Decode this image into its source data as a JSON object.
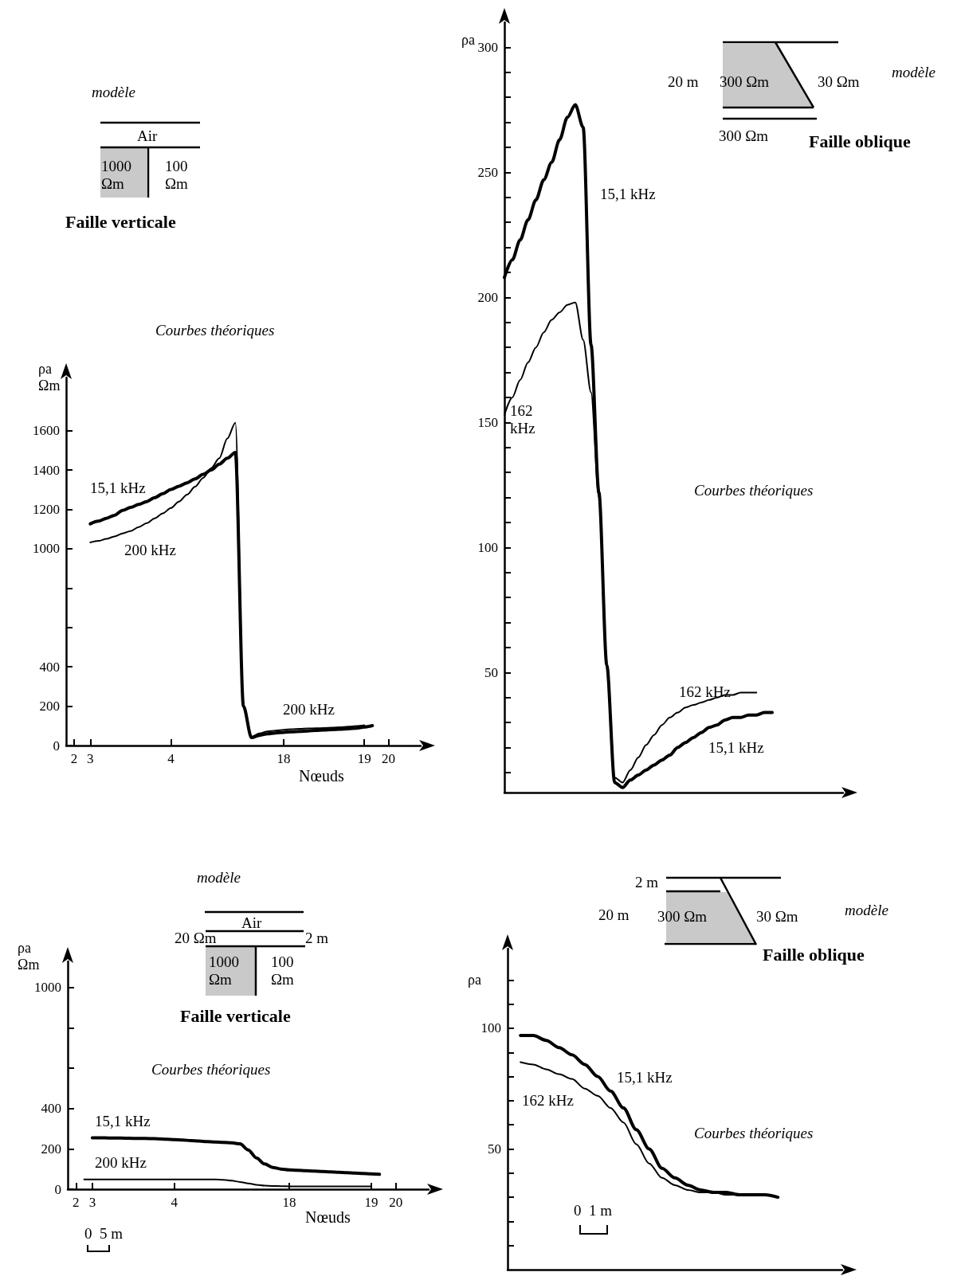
{
  "chart_data": [
    {
      "type": "line",
      "xlabel": "Nœuds",
      "ylabel": "ρa\nΩm",
      "ylim": [
        0,
        1870
      ],
      "categories": [
        null,
        "2",
        null,
        "3",
        null,
        null,
        null,
        null,
        null,
        null,
        null,
        null,
        null,
        "4",
        null,
        null,
        null,
        null,
        null,
        null,
        null,
        null,
        null,
        null,
        null,
        null,
        null,
        "18",
        null,
        null,
        null,
        null,
        null,
        null,
        null,
        null,
        null,
        "19",
        null,
        null,
        "20",
        null,
        null,
        null,
        null
      ],
      "yticks": [
        0,
        200,
        400,
        {
          "value": 600,
          "label": null
        },
        {
          "value": 800,
          "label": null
        },
        1000,
        1200,
        1400,
        1600
      ],
      "series": [
        {
          "name": "15,1 kHz",
          "color": "#000000",
          "values": [
            null,
            null,
            null,
            1127,
            1140,
            1155,
            1170,
            1195,
            1210,
            1225,
            1240,
            1260,
            1280,
            1301,
            1318,
            1335,
            1355,
            1378,
            1400,
            1430,
            1460,
            1490,
            200,
            40,
            52,
            60,
            64,
            67,
            70,
            72,
            74,
            77,
            79,
            81,
            83,
            85,
            88,
            94,
            101,
            null,
            null,
            null,
            null,
            null,
            null
          ]
        },
        {
          "name": "200 kHz",
          "color": "#000000",
          "values": [
            null,
            null,
            null,
            1032,
            1040,
            1050,
            1063,
            1078,
            1090,
            1110,
            1130,
            1155,
            1180,
            1207,
            1240,
            1275,
            1315,
            1360,
            1410,
            1460,
            1560,
            1640,
            200,
            45,
            62,
            72,
            76,
            80,
            83,
            85,
            87,
            88,
            89,
            91,
            93,
            96,
            99,
            103,
            null,
            null,
            null,
            null,
            null,
            null,
            null
          ]
        }
      ],
      "annotations": [
        "modèle",
        "Air",
        "1000\nΩm",
        "100\nΩm",
        "Faille verticale",
        "Courbes théoriques",
        "200 kHz"
      ]
    },
    {
      "type": "line",
      "ylabel": "ρa",
      "tick_labels": "y",
      "ylim": [
        2,
        310
      ],
      "categories": [
        null,
        null,
        null,
        null,
        null,
        null,
        null,
        null,
        null,
        null,
        null,
        null,
        null,
        null,
        null,
        null,
        null,
        null,
        null,
        null,
        null,
        null,
        null,
        null,
        null,
        null,
        null,
        null,
        null,
        null,
        null,
        null,
        null,
        null,
        null,
        null,
        null,
        null,
        null,
        null,
        null,
        null,
        null,
        null
      ],
      "yticks": [
        {
          "value": 10,
          "label": null
        },
        {
          "value": 20,
          "label": null
        },
        {
          "value": 30,
          "label": null
        },
        {
          "value": 40,
          "label": null
        },
        50,
        {
          "value": 60,
          "label": null
        },
        {
          "value": 70,
          "label": null
        },
        {
          "value": 80,
          "label": null
        },
        {
          "value": 90,
          "label": null
        },
        100,
        {
          "value": 110,
          "label": null
        },
        {
          "value": 120,
          "label": null
        },
        {
          "value": 130,
          "label": null
        },
        {
          "value": 140,
          "label": null
        },
        150,
        {
          "value": 160,
          "label": null
        },
        {
          "value": 170,
          "label": null
        },
        {
          "value": 180,
          "label": null
        },
        {
          "value": 190,
          "label": null
        },
        200,
        {
          "value": 210,
          "label": null
        },
        {
          "value": 220,
          "label": null
        },
        {
          "value": 230,
          "label": null
        },
        {
          "value": 240,
          "label": null
        },
        250,
        {
          "value": 260,
          "label": null
        },
        {
          "value": 270,
          "label": null
        },
        {
          "value": 280,
          "label": null
        },
        {
          "value": 290,
          "label": null
        },
        300
      ],
      "series": [
        {
          "name": "15,1 kHz",
          "color": "#000000",
          "values": [
            208,
            215,
            223,
            231,
            239,
            247,
            254,
            263,
            272,
            277,
            268,
            181,
            122,
            53,
            6,
            4,
            7,
            9,
            11,
            13,
            15,
            17,
            20,
            22,
            24,
            26,
            28,
            29,
            31,
            32,
            32,
            33,
            33,
            34,
            34,
            null,
            null,
            null,
            null,
            null,
            null,
            null,
            null,
            null
          ]
        },
        {
          "name": "162 kHz",
          "color": "#000000",
          "values": [
            153,
            160,
            167,
            174,
            180,
            186,
            191,
            194,
            197,
            198,
            183,
            162,
            120,
            53,
            8,
            6,
            11,
            16,
            21,
            25,
            29,
            32,
            34,
            36,
            37,
            38,
            39,
            40,
            41,
            41,
            42,
            42,
            42,
            null,
            null,
            null,
            null,
            null,
            null,
            null,
            null,
            null,
            null,
            null
          ]
        }
      ],
      "annotations": [
        "20 m",
        "300 Ωm",
        "30 Ωm",
        "modèle",
        "300 Ωm",
        "Faille oblique",
        "Courbes théoriques",
        "162 kHz",
        "15,1 kHz"
      ]
    },
    {
      "type": "line",
      "xlabel": "Nœuds",
      "ylabel": "ρa\nΩm",
      "ylim": [
        0,
        1130
      ],
      "categories": [
        null,
        "2",
        null,
        "3",
        null,
        null,
        null,
        null,
        null,
        null,
        null,
        null,
        null,
        "4",
        null,
        null,
        null,
        null,
        null,
        null,
        null,
        null,
        null,
        null,
        null,
        null,
        null,
        "18",
        null,
        null,
        null,
        null,
        null,
        null,
        null,
        null,
        null,
        "19",
        null,
        null,
        "20",
        null,
        null,
        null,
        null
      ],
      "yticks": [
        0,
        200,
        400,
        {
          "value": 600,
          "label": null
        },
        {
          "value": 800,
          "label": null
        },
        1000
      ],
      "series": [
        {
          "name": "15,1 kHz",
          "color": "#000000",
          "values": [
            null,
            null,
            null,
            255,
            255,
            254,
            254,
            253,
            252,
            252,
            251,
            250,
            248,
            246,
            244,
            241,
            239,
            236,
            234,
            232,
            230,
            225,
            195,
            155,
            125,
            108,
            100,
            96,
            94,
            92,
            90,
            88,
            86,
            84,
            82,
            80,
            78,
            76,
            74,
            null,
            null,
            null,
            null,
            null,
            null
          ]
        },
        {
          "name": "200 kHz",
          "color": "#000000",
          "values": [
            null,
            null,
            48,
            48,
            48,
            48,
            48,
            48,
            48,
            48,
            48,
            48,
            48,
            48,
            48,
            48,
            48,
            48,
            48,
            46,
            42,
            36,
            29,
            22,
            18,
            16,
            15,
            14,
            14,
            14,
            14,
            14,
            14,
            14,
            14,
            14,
            14,
            14,
            null,
            null,
            null,
            null,
            null,
            null,
            null
          ]
        }
      ],
      "annotations": [
        "modèle",
        "Air",
        "20 Ωm",
        "2 m",
        "1000\nΩm",
        "100\nΩm",
        "Faille verticale",
        "Courbes théoriques",
        "0  5 m"
      ]
    },
    {
      "type": "line",
      "ylabel": "ρa",
      "tick_labels": "y",
      "ylim": [
        0,
        133
      ],
      "categories": [
        null,
        null,
        null,
        null,
        null,
        null,
        null,
        null,
        null,
        null,
        null,
        null,
        null,
        null,
        null,
        null,
        null,
        null,
        null,
        null,
        null,
        null,
        null,
        null,
        null,
        null,
        null
      ],
      "yticks": [
        {
          "value": 10,
          "label": null
        },
        {
          "value": 20,
          "label": null
        },
        {
          "value": 30,
          "label": null
        },
        {
          "value": 40,
          "label": null
        },
        50,
        {
          "value": 60,
          "label": null
        },
        {
          "value": 70,
          "label": null
        },
        {
          "value": 80,
          "label": null
        },
        {
          "value": 90,
          "label": null
        },
        100,
        {
          "value": 110,
          "label": null
        },
        {
          "value": 120,
          "label": null
        }
      ],
      "series": [
        {
          "name": "15,1 kHz",
          "color": "#000000",
          "values": [
            null,
            97,
            97,
            95,
            92,
            89,
            85,
            80,
            74,
            67,
            58,
            50,
            42,
            38,
            35,
            33,
            32,
            32,
            31,
            31,
            31,
            30,
            null,
            null,
            null,
            null,
            null
          ]
        },
        {
          "name": "162 kHz",
          "color": "#000000",
          "values": [
            null,
            86,
            85,
            83,
            81,
            79,
            75,
            72,
            67,
            61,
            52,
            44,
            38,
            35,
            33,
            32,
            32,
            31,
            31,
            31,
            31,
            30,
            null,
            null,
            null,
            null,
            null
          ]
        }
      ],
      "annotations": [
        "2 m",
        "20 m",
        "300 Ωm",
        "30 Ωm",
        "modèle",
        "Faille oblique",
        "Courbes théoriques",
        "0  1 m"
      ]
    }
  ]
}
